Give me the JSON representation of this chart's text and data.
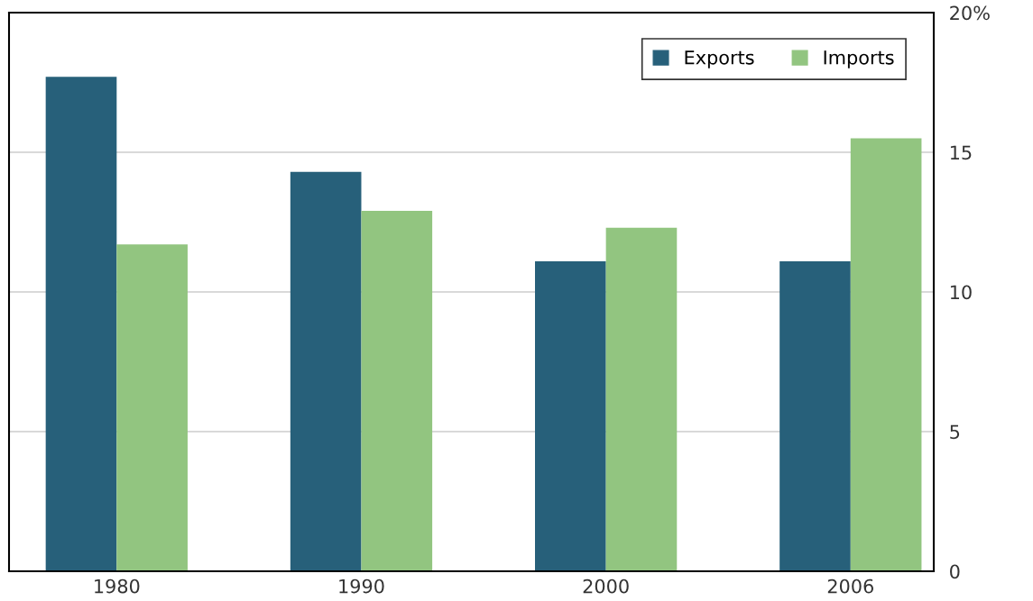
{
  "chart_data": {
    "type": "bar",
    "categories": [
      "1980",
      "1990",
      "2000",
      "2006"
    ],
    "series": [
      {
        "name": "Exports",
        "color": "#27607a",
        "values": [
          17.7,
          14.3,
          11.1,
          11.1
        ]
      },
      {
        "name": "Imports",
        "color": "#92c580",
        "values": [
          11.7,
          12.9,
          12.3,
          15.5
        ]
      }
    ],
    "ylim": [
      0,
      20
    ],
    "yticks": [
      0,
      5,
      10,
      15,
      {
        "value": 20,
        "label": "20%"
      }
    ],
    "grid": "y",
    "legend": "top right"
  }
}
